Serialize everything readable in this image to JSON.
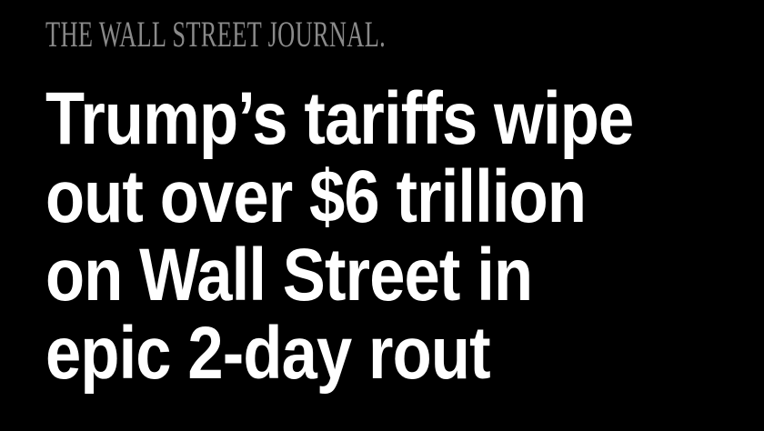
{
  "masthead": "THE WALL STREET JOURNAL.",
  "headline": {
    "lines": [
      "Trump’s tariffs wipe",
      "out over $6 trillion",
      "on Wall Street in",
      "epic 2-day rout"
    ]
  }
}
